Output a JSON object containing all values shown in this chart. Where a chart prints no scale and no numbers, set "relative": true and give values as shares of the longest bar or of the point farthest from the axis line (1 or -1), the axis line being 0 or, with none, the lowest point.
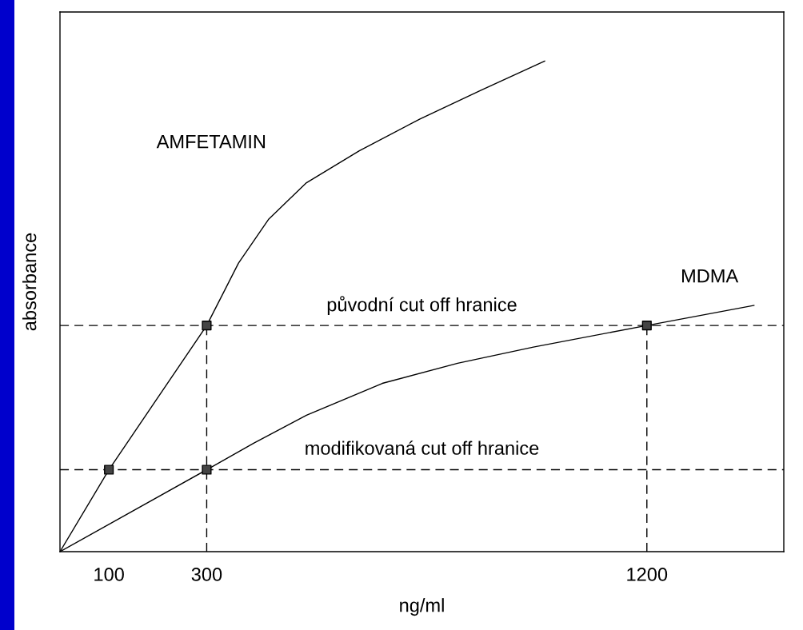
{
  "chart_data": {
    "type": "line",
    "relative": true,
    "xlabel": "ng/ml",
    "ylabel": "absorbance",
    "xlim": [
      0,
      1480
    ],
    "xticks": [
      100,
      300,
      1200
    ],
    "grid": false,
    "legend": false,
    "tick_labels": "x",
    "line_style": "solid",
    "series": [
      {
        "name": "AMFETAMIN",
        "color": "#000000",
        "x": [
          0,
          100,
          300,
          365,
          427,
          504,
          612,
          736,
          860,
          991
        ],
        "values": [
          0,
          0.167,
          0.461,
          0.588,
          0.678,
          0.752,
          0.817,
          0.882,
          0.94,
          1.0
        ]
      },
      {
        "name": "MDMA",
        "color": "#000000",
        "x": [
          0,
          300,
          396,
          504,
          659,
          813,
          968,
          1200,
          1419
        ],
        "values": [
          0,
          0.167,
          0.221,
          0.278,
          0.343,
          0.384,
          0.417,
          0.461,
          0.502
        ]
      },
      {
        "type": "line",
        "color": "#000000",
        "line_style": "dashed",
        "x": [
          300,
          300
        ],
        "values": [
          0,
          0.461
        ]
      },
      {
        "type": "line",
        "color": "#000000",
        "line_style": "dashed",
        "x": [
          1200,
          1200
        ],
        "values": [
          0,
          0.461
        ]
      },
      {
        "type": "scatter",
        "color": "#000000",
        "marker": "square",
        "x": [
          100,
          300,
          300,
          1200
        ],
        "values": [
          0.167,
          0.461,
          0.167,
          0.461
        ]
      }
    ],
    "ref_lines": [
      {
        "axis": "y",
        "value": 0.461,
        "label": "původní cut off hranice",
        "color": "#000000",
        "line_style": "dashed"
      },
      {
        "axis": "y",
        "value": 0.167,
        "label": "modifikovaná cut off hranice",
        "color": "#000000",
        "line_style": "dashed"
      }
    ]
  }
}
